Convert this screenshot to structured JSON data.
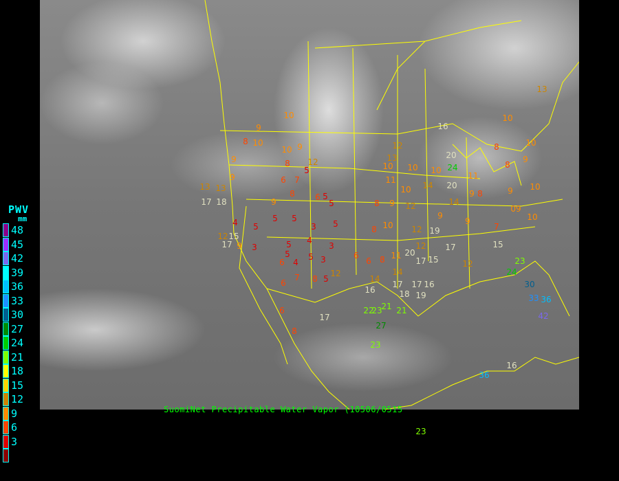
{
  "legend": {
    "title": "PWV",
    "unit": "mm",
    "labels": [
      "48",
      "45",
      "42",
      "39",
      "36",
      "33",
      "30",
      "27",
      "24",
      "21",
      "18",
      "15",
      "12",
      "9",
      "6",
      "3"
    ],
    "colors": [
      "#8b008b",
      "#9b30ff",
      "#7b68ee",
      "#00ffff",
      "#00bfff",
      "#1e90ff",
      "#005f8f",
      "#008b00",
      "#00cd00",
      "#7fff00",
      "#ffff00",
      "#ffd700",
      "#cd8500",
      "#ff8c00",
      "#ff4500",
      "#e00000",
      "#8b0000"
    ]
  },
  "caption": "SuomiNet Precipitable Water Vapor (10506/0515",
  "stations": [
    "10",
    "9",
    "8",
    "10",
    "10",
    "9",
    "9",
    "8",
    "12",
    "5",
    "6",
    "7",
    "9",
    "13",
    "13",
    "17",
    "18",
    "9",
    "8",
    "6",
    "5",
    "5",
    "8",
    "9",
    "12",
    "5",
    "5",
    "3",
    "5",
    "8",
    "10",
    "12",
    "4",
    "5",
    "12",
    "15",
    "17",
    "9",
    "3",
    "5",
    "4",
    "3",
    "5",
    "6",
    "4",
    "5",
    "3",
    "6",
    "6",
    "8",
    "11",
    "14",
    "20",
    "17",
    "15",
    "17",
    "12",
    "8",
    "5",
    "12",
    "7",
    "6",
    "14",
    "17",
    "17",
    "16",
    "16",
    "18",
    "19",
    "22",
    "23",
    "21",
    "21",
    "17",
    "6",
    "8",
    "27",
    "23",
    "23",
    "36",
    "16",
    "10",
    "11",
    "13",
    "12",
    "10",
    "10",
    "10",
    "14",
    "20",
    "24",
    "20",
    "9",
    "8",
    "11",
    "8",
    "9",
    "9",
    "10",
    "09",
    "10",
    "7",
    "15",
    "23",
    "24",
    "30",
    "33",
    "36",
    "42",
    "10",
    "10",
    "8",
    "13",
    "16",
    "9",
    "9",
    "14",
    "19",
    "12"
  ]
}
